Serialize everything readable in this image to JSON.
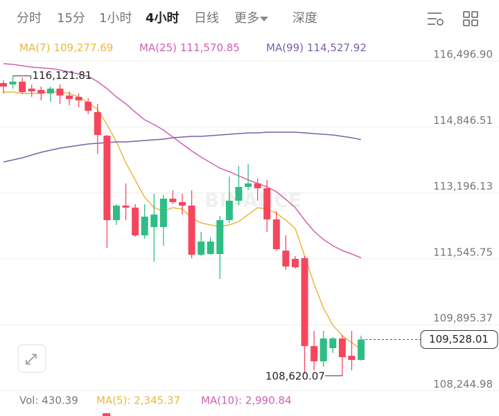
{
  "tabs": [
    "分时",
    "15分",
    "1小时",
    "4小时",
    "日线",
    "更多",
    "深度"
  ],
  "chart_data": {
    "type": "candlestick",
    "watermark": "BINANCE",
    "up_color": "#2ebd85",
    "down_color": "#f6465d",
    "ylim": [
      108150.6,
      116981.8
    ],
    "yticks": [
      {
        "value": 116496.9,
        "label": "116,496.90"
      },
      {
        "value": 114846.51,
        "label": "114,846.51"
      },
      {
        "value": 113196.13,
        "label": "113,196.13"
      },
      {
        "value": 111545.75,
        "label": "111,545.75"
      },
      {
        "value": 109895.37,
        "label": "109,895.37"
      },
      {
        "value": 108244.98,
        "label": "108,244.98"
      }
    ],
    "grid": true,
    "open": [
      115943,
      115908,
      115978,
      115804,
      115770,
      115683,
      115804,
      115631,
      115597,
      115475,
      115216,
      114627,
      112514,
      112878,
      112826,
      112133,
      112341,
      112341,
      113051,
      112965,
      112878,
      111649,
      111666,
      111666,
      112514,
      112999,
      113345,
      113432,
      113311,
      112532,
      111752,
      111545,
      111562,
      109363,
      108982,
      109311,
      109553,
      109120,
      109016
    ],
    "high": [
      116012,
      116121.81,
      116081,
      115908,
      115856,
      115856,
      115908,
      115735,
      115683,
      115562,
      115423,
      114644,
      112913,
      113432,
      112913,
      112913,
      113172,
      113138,
      113259,
      113172,
      113259,
      112220,
      112081,
      112618,
      113605,
      113865,
      113917,
      113553,
      113519,
      112739,
      112133,
      111614,
      111614,
      109744,
      109744,
      109588,
      109640,
      109744,
      109623
    ],
    "low": [
      115683,
      115804,
      115683,
      115597,
      115510,
      115475,
      115423,
      115389,
      115337,
      115164,
      114177,
      111822,
      112393,
      112514,
      112099,
      112047,
      111475,
      111874,
      112913,
      112653,
      111562,
      111614,
      111649,
      111042,
      112445,
      112895,
      113259,
      112999,
      112220,
      111752,
      111268,
      111302,
      108670,
      108757,
      108843,
      109190,
      108620.07,
      108757,
      108999
    ],
    "close": [
      115856,
      115978,
      115718,
      115735,
      115683,
      115804,
      115631,
      115545,
      115510,
      115250,
      114644,
      112514,
      112878,
      112826,
      112133,
      112601,
      112653,
      113051,
      112965,
      112878,
      111649,
      111978,
      111978,
      112514,
      112999,
      113345,
      113432,
      113311,
      112532,
      111787,
      111354,
      111337,
      109363,
      108982,
      109553,
      109553,
      109086,
      109016,
      109528.01
    ],
    "high_label": "116,121.81",
    "low_label": "108,620.07",
    "last_price_label": "109,528.01",
    "series": [
      {
        "name": "MA(7)",
        "color": "#e6b93c",
        "values": [
          115718,
          115718,
          115683,
          115683,
          115683,
          115718,
          115718,
          115683,
          115597,
          115458,
          115285,
          114904,
          114471,
          113952,
          113519,
          113086,
          112826,
          112739,
          112826,
          112791,
          112566,
          112445,
          112393,
          112358,
          112393,
          112480,
          112653,
          112826,
          112791,
          112687,
          112514,
          112307,
          111614,
          110921,
          110315,
          109882,
          109623,
          109449,
          109277.69
        ],
        "value_labels": [
          null,
          null,
          null,
          null,
          null,
          null,
          null,
          null,
          null,
          null,
          null,
          null,
          null,
          null,
          null,
          null,
          null,
          null,
          null,
          null,
          null,
          null,
          null,
          null,
          null,
          null,
          null,
          null,
          null,
          null,
          null,
          null,
          null,
          null,
          null,
          null,
          null,
          null,
          "109,277.69"
        ]
      },
      {
        "name": "MA(25)",
        "color": "#d160b0",
        "values": [
          116428,
          116410,
          116376,
          116341,
          116324,
          116307,
          116272,
          116220,
          116168,
          116116,
          115978,
          115804,
          115597,
          115423,
          115216,
          115025,
          114904,
          114765,
          114592,
          114419,
          114246,
          114090,
          113952,
          113813,
          113726,
          113623,
          113519,
          113432,
          113345,
          113224,
          113034,
          112826,
          112514,
          112237,
          112029,
          111874,
          111752,
          111666,
          111570.85
        ],
        "value_labels": [
          null,
          null,
          null,
          null,
          null,
          null,
          null,
          null,
          null,
          null,
          null,
          null,
          null,
          null,
          null,
          null,
          null,
          null,
          null,
          null,
          null,
          null,
          null,
          null,
          null,
          null,
          null,
          null,
          null,
          null,
          null,
          null,
          null,
          null,
          null,
          null,
          null,
          null,
          "111,570.85"
        ]
      },
      {
        "name": "MA(99)",
        "color": "#7b5ea7",
        "values": [
          113969,
          114021,
          114073,
          114142,
          114211,
          114263,
          114315,
          114350,
          114384,
          114419,
          114436,
          114454,
          114471,
          114471,
          114488,
          114506,
          114523,
          114540,
          114575,
          114592,
          114610,
          114610,
          114627,
          114644,
          114662,
          114679,
          114696,
          114696,
          114713,
          114713,
          114713,
          114713,
          114696,
          114679,
          114662,
          114644,
          114610,
          114575,
          114527.92
        ],
        "value_labels": [
          null,
          null,
          null,
          null,
          null,
          null,
          null,
          null,
          null,
          null,
          null,
          null,
          null,
          null,
          null,
          null,
          null,
          null,
          null,
          null,
          null,
          null,
          null,
          null,
          null,
          null,
          null,
          null,
          null,
          null,
          null,
          null,
          null,
          null,
          null,
          null,
          null,
          null,
          "114,527.92"
        ]
      }
    ]
  },
  "volume_legend": [
    {
      "text": "Vol: 430.39",
      "color": "#777777"
    },
    {
      "text": "MA(5): 2,345.37",
      "color": "#e6b93c"
    },
    {
      "text": "MA(10): 2,990.84",
      "color": "#d160b0"
    }
  ]
}
